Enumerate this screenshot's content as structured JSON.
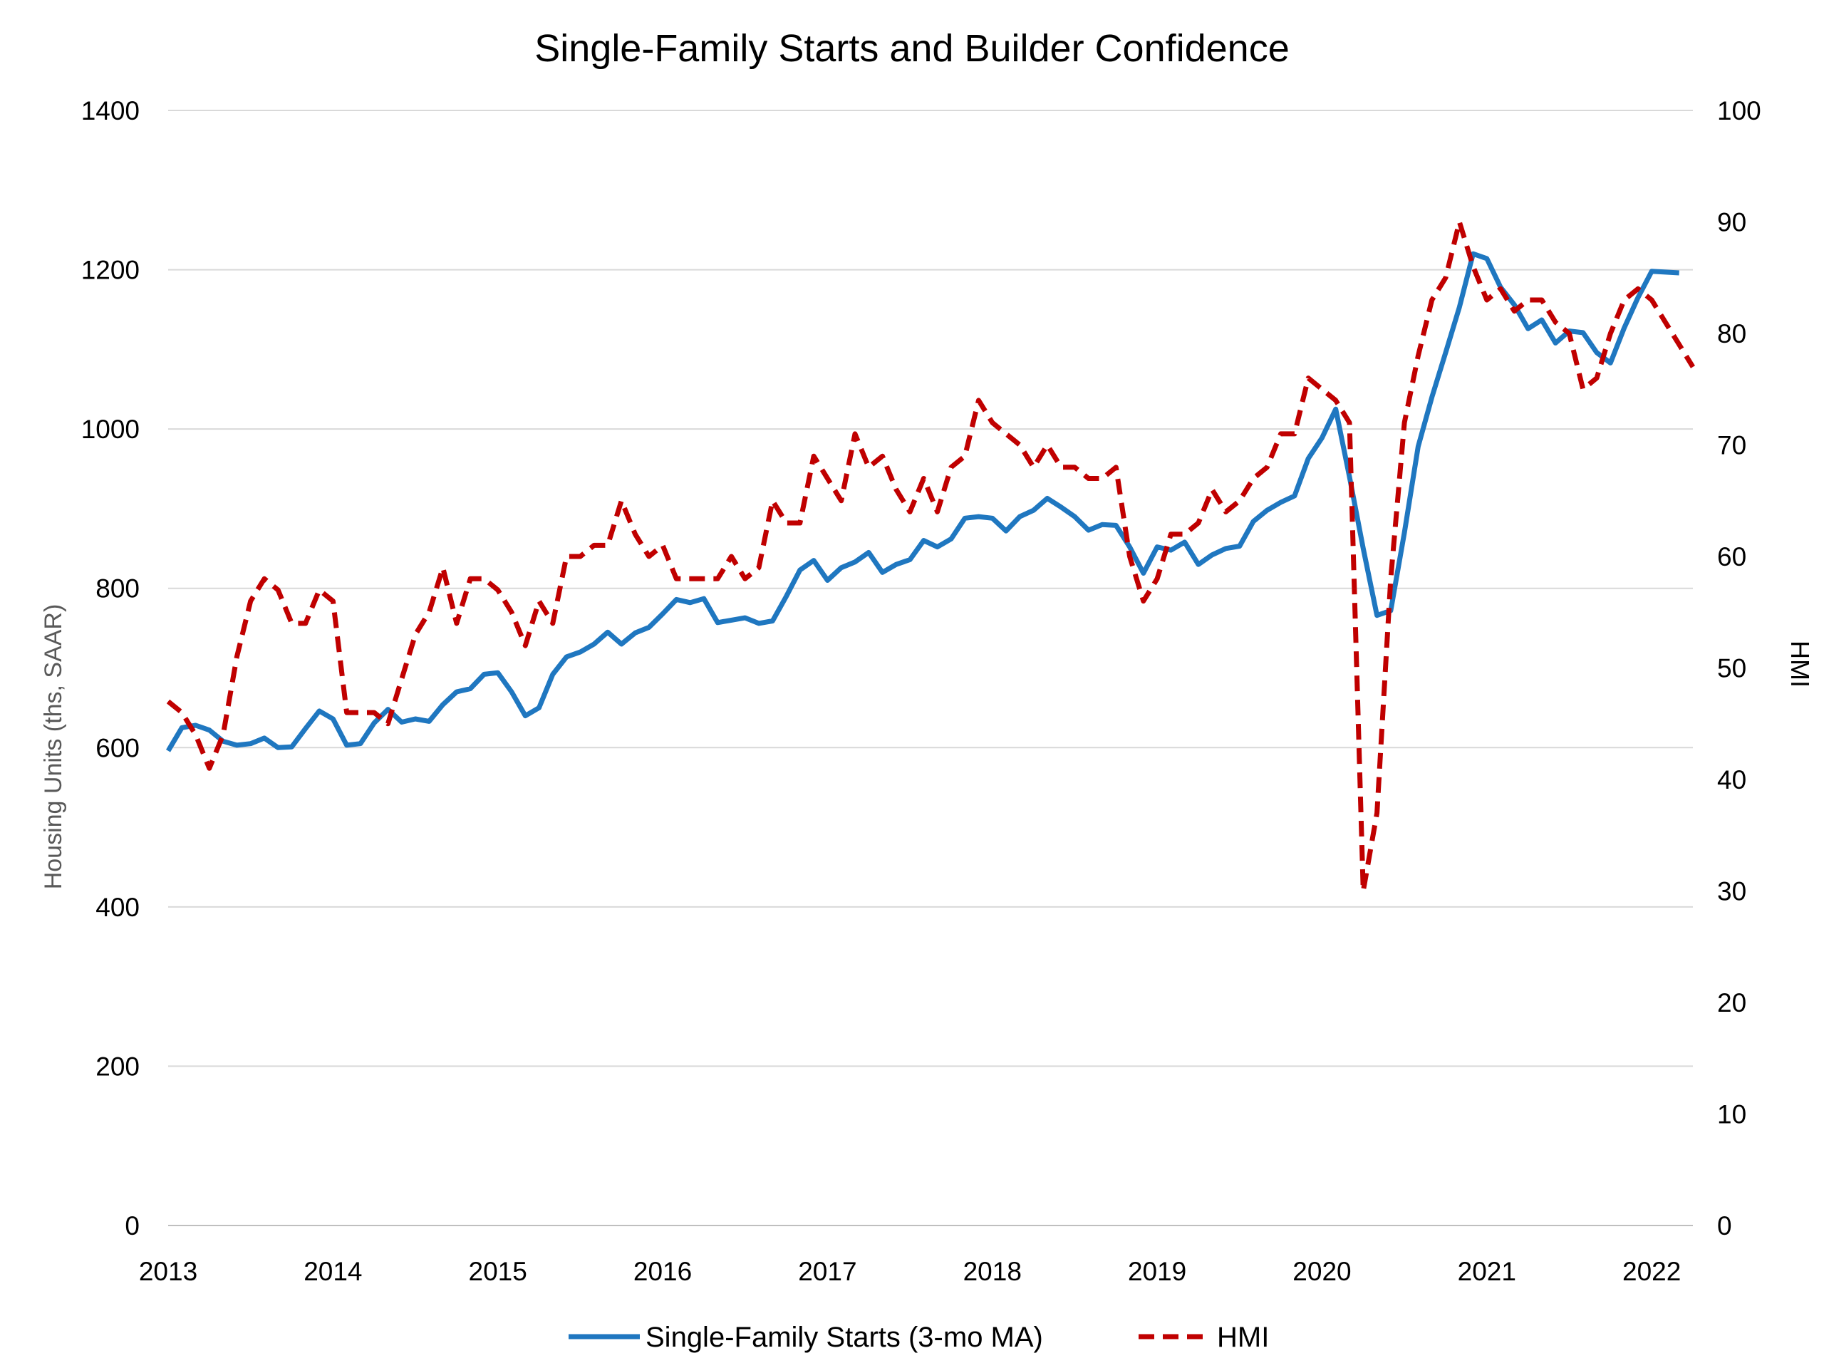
{
  "chart_data": {
    "type": "line",
    "title": "Single-Family Starts and Builder Confidence",
    "y_left_label": "Housing Units (ths, SAAR)",
    "y_right_label": "HMI",
    "y_left_range": [
      0,
      1400
    ],
    "y_left_ticks": [
      "0",
      "200",
      "400",
      "600",
      "800",
      "1000",
      "1200",
      "1400"
    ],
    "y_right_range": [
      0,
      100
    ],
    "y_right_ticks": [
      "0",
      "10",
      "20",
      "30",
      "40",
      "50",
      "60",
      "70",
      "80",
      "90",
      "100"
    ],
    "x_range": [
      "2013-01",
      "2022-04"
    ],
    "x_tick_labels": [
      "2013",
      "2014",
      "2015",
      "2016",
      "2017",
      "2018",
      "2019",
      "2020",
      "2021",
      "2022"
    ],
    "grid": "horizontal",
    "legend_position": "bottom",
    "series": [
      {
        "name": "Single-Family Starts (3-mo MA)",
        "axis": "left",
        "color": "#1f77c0",
        "style": "solid",
        "x": [
          "2013-01",
          "2013-02",
          "2013-03",
          "2013-04",
          "2013-05",
          "2013-06",
          "2013-07",
          "2013-08",
          "2013-09",
          "2013-10",
          "2013-11",
          "2013-12",
          "2014-01",
          "2014-02",
          "2014-03",
          "2014-04",
          "2014-05",
          "2014-06",
          "2014-07",
          "2014-08",
          "2014-09",
          "2014-10",
          "2014-11",
          "2014-12",
          "2015-01",
          "2015-02",
          "2015-03",
          "2015-04",
          "2015-05",
          "2015-06",
          "2015-07",
          "2015-08",
          "2015-09",
          "2015-10",
          "2015-11",
          "2015-12",
          "2016-01",
          "2016-02",
          "2016-03",
          "2016-04",
          "2016-05",
          "2016-06",
          "2016-07",
          "2016-08",
          "2016-09",
          "2016-10",
          "2016-11",
          "2016-12",
          "2017-01",
          "2017-02",
          "2017-03",
          "2017-04",
          "2017-05",
          "2017-06",
          "2017-07",
          "2017-08",
          "2017-09",
          "2017-10",
          "2017-11",
          "2017-12",
          "2018-01",
          "2018-02",
          "2018-03",
          "2018-04",
          "2018-05",
          "2018-06",
          "2018-07",
          "2018-08",
          "2018-09",
          "2018-10",
          "2018-11",
          "2018-12",
          "2019-01",
          "2019-02",
          "2019-03",
          "2019-04",
          "2019-05",
          "2019-06",
          "2019-07",
          "2019-08",
          "2019-09",
          "2019-10",
          "2019-11",
          "2019-12",
          "2020-01",
          "2020-02",
          "2020-03",
          "2020-04",
          "2020-05",
          "2020-06",
          "2020-07",
          "2020-08",
          "2020-09",
          "2020-10",
          "2020-11",
          "2020-12",
          "2021-01",
          "2021-02",
          "2021-03",
          "2021-04",
          "2021-05",
          "2021-06",
          "2021-07",
          "2021-08",
          "2021-09",
          "2021-10",
          "2021-11",
          "2021-12",
          "2022-01",
          "2022-02",
          "2022-03"
        ],
        "values": [
          596,
          625,
          628,
          622,
          608,
          603,
          605,
          612,
          600,
          601,
          624,
          646,
          636,
          603,
          605,
          631,
          648,
          632,
          636,
          633,
          654,
          670,
          674,
          692,
          694,
          670,
          640,
          650,
          692,
          714,
          720,
          730,
          745,
          730,
          744,
          751,
          768,
          786,
          782,
          787,
          757,
          760,
          763,
          756,
          759,
          790,
          823,
          835,
          810,
          826,
          833,
          845,
          820,
          830,
          836,
          860,
          852,
          862,
          888,
          890,
          888,
          872,
          890,
          898,
          913,
          902,
          890,
          873,
          880,
          879,
          852,
          819,
          852,
          848,
          858,
          830,
          842,
          850,
          853,
          884,
          898,
          908,
          916,
          963,
          989,
          1025,
          940,
          850,
          766,
          772,
          870,
          978,
          1040,
          1096,
          1153,
          1220,
          1214,
          1178,
          1156,
          1126,
          1137,
          1108,
          1123,
          1121,
          1096,
          1083,
          1127,
          1165,
          1198,
          1197,
          1196
        ]
      },
      {
        "name": "HMI",
        "axis": "right",
        "color": "#c00000",
        "style": "dashed",
        "x": [
          "2013-01",
          "2013-02",
          "2013-03",
          "2013-04",
          "2013-05",
          "2013-06",
          "2013-07",
          "2013-08",
          "2013-09",
          "2013-10",
          "2013-11",
          "2013-12",
          "2014-01",
          "2014-02",
          "2014-03",
          "2014-04",
          "2014-05",
          "2014-06",
          "2014-07",
          "2014-08",
          "2014-09",
          "2014-10",
          "2014-11",
          "2014-12",
          "2015-01",
          "2015-02",
          "2015-03",
          "2015-04",
          "2015-05",
          "2015-06",
          "2015-07",
          "2015-08",
          "2015-09",
          "2015-10",
          "2015-11",
          "2015-12",
          "2016-01",
          "2016-02",
          "2016-03",
          "2016-04",
          "2016-05",
          "2016-06",
          "2016-07",
          "2016-08",
          "2016-09",
          "2016-10",
          "2016-11",
          "2016-12",
          "2017-01",
          "2017-02",
          "2017-03",
          "2017-04",
          "2017-05",
          "2017-06",
          "2017-07",
          "2017-08",
          "2017-09",
          "2017-10",
          "2017-11",
          "2017-12",
          "2018-01",
          "2018-02",
          "2018-03",
          "2018-04",
          "2018-05",
          "2018-06",
          "2018-07",
          "2018-08",
          "2018-09",
          "2018-10",
          "2018-11",
          "2018-12",
          "2019-01",
          "2019-02",
          "2019-03",
          "2019-04",
          "2019-05",
          "2019-06",
          "2019-07",
          "2019-08",
          "2019-09",
          "2019-10",
          "2019-11",
          "2019-12",
          "2020-01",
          "2020-02",
          "2020-03",
          "2020-04",
          "2020-05",
          "2020-06",
          "2020-07",
          "2020-08",
          "2020-09",
          "2020-10",
          "2020-11",
          "2020-12",
          "2021-01",
          "2021-02",
          "2021-03",
          "2021-04",
          "2021-05",
          "2021-06",
          "2021-07",
          "2021-08",
          "2021-09",
          "2021-10",
          "2021-11",
          "2021-12",
          "2022-01",
          "2022-02",
          "2022-03",
          "2022-04"
        ],
        "values": [
          47,
          46,
          44,
          41,
          44,
          51,
          56,
          58,
          57,
          54,
          54,
          57,
          56,
          46,
          46,
          46,
          45,
          49,
          53,
          55,
          59,
          54,
          58,
          58,
          57,
          55,
          52,
          56,
          54,
          60,
          60,
          61,
          61,
          65,
          62,
          60,
          61,
          58,
          58,
          58,
          58,
          60,
          58,
          59,
          65,
          63,
          63,
          69,
          67,
          65,
          71,
          68,
          69,
          66,
          64,
          67,
          64,
          68,
          69,
          74,
          72,
          71,
          70,
          68,
          70,
          68,
          68,
          67,
          67,
          68,
          60,
          56,
          58,
          62,
          62,
          63,
          66,
          64,
          65,
          67,
          68,
          71,
          71,
          76,
          75,
          74,
          72,
          30,
          37,
          58,
          72,
          78,
          83,
          85,
          90,
          86,
          83,
          84,
          82,
          83,
          83,
          81,
          80,
          75,
          76,
          80,
          83,
          84,
          83,
          81,
          79,
          77
        ]
      }
    ]
  }
}
